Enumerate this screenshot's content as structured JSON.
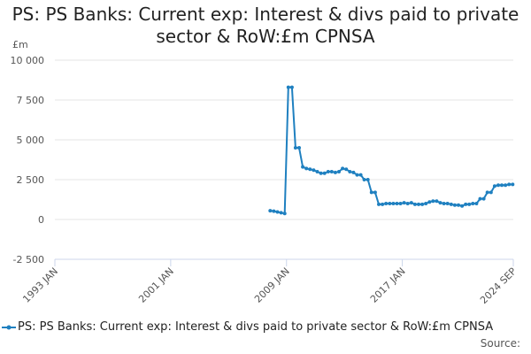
{
  "chart_data": {
    "type": "line",
    "title": "PS: PS Banks: Current exp: Interest & divs paid to private sector & RoW:£m CPNSA",
    "ylabel": "£m",
    "xlabel": "",
    "ylim": [
      -2500,
      10000
    ],
    "xlim": [
      "1993 JAN",
      "2024 SEP"
    ],
    "y_ticks": [
      "10 000",
      "7 500",
      "5 000",
      "2 500",
      "0",
      "-2 500"
    ],
    "x_ticks": [
      "1993 JAN",
      "2001 JAN",
      "2009 JAN",
      "2017 JAN",
      "2024 SEP"
    ],
    "grid": true,
    "legend_position": "bottom",
    "series": [
      {
        "name": "PS: PS Banks: Current exp: Interest & divs paid to private sector & RoW:£m CPNSA",
        "color": "#1f80c0",
        "x": [
          "2007 Q4",
          "2008 Q1",
          "2008 Q2",
          "2008 Q3",
          "2008 Q4",
          "2009 Q1",
          "2009 Q2",
          "2009 Q3",
          "2009 Q4",
          "2010 Q1",
          "2010 Q2",
          "2010 Q3",
          "2010 Q4",
          "2011 Q1",
          "2011 Q2",
          "2011 Q3",
          "2011 Q4",
          "2012 Q1",
          "2012 Q2",
          "2012 Q3",
          "2012 Q4",
          "2013 Q1",
          "2013 Q2",
          "2013 Q3",
          "2013 Q4",
          "2014 Q1",
          "2014 Q2",
          "2014 Q3",
          "2014 Q4",
          "2015 Q1",
          "2015 Q2",
          "2015 Q3",
          "2015 Q4",
          "2016 Q1",
          "2016 Q2",
          "2016 Q3",
          "2016 Q4",
          "2017 Q1",
          "2017 Q2",
          "2017 Q3",
          "2017 Q4",
          "2018 Q1",
          "2018 Q2",
          "2018 Q3",
          "2018 Q4",
          "2019 Q1",
          "2019 Q2",
          "2019 Q3",
          "2019 Q4",
          "2020 Q1",
          "2020 Q2",
          "2020 Q3",
          "2020 Q4",
          "2021 Q1",
          "2021 Q2",
          "2021 Q3",
          "2021 Q4",
          "2022 Q1",
          "2022 Q2",
          "2022 Q3",
          "2022 Q4",
          "2023 Q1",
          "2023 Q2",
          "2023 Q3",
          "2023 Q4",
          "2024 Q1",
          "2024 Q2",
          "2024 Q3"
        ],
        "values": [
          550,
          520,
          470,
          420,
          380,
          8300,
          8300,
          4500,
          4500,
          3300,
          3200,
          3150,
          3100,
          3000,
          2900,
          2900,
          3000,
          3000,
          2950,
          3000,
          3200,
          3150,
          3000,
          2950,
          2800,
          2800,
          2500,
          2500,
          1700,
          1700,
          950,
          950,
          1000,
          1000,
          1000,
          1000,
          1000,
          1050,
          1000,
          1050,
          950,
          950,
          950,
          1000,
          1100,
          1150,
          1150,
          1050,
          1000,
          1000,
          950,
          900,
          900,
          850,
          950,
          950,
          1000,
          1000,
          1300,
          1300,
          1700,
          1700,
          2100,
          2150,
          2150,
          2150,
          2200,
          2200
        ]
      }
    ]
  },
  "source_label": "Source:"
}
